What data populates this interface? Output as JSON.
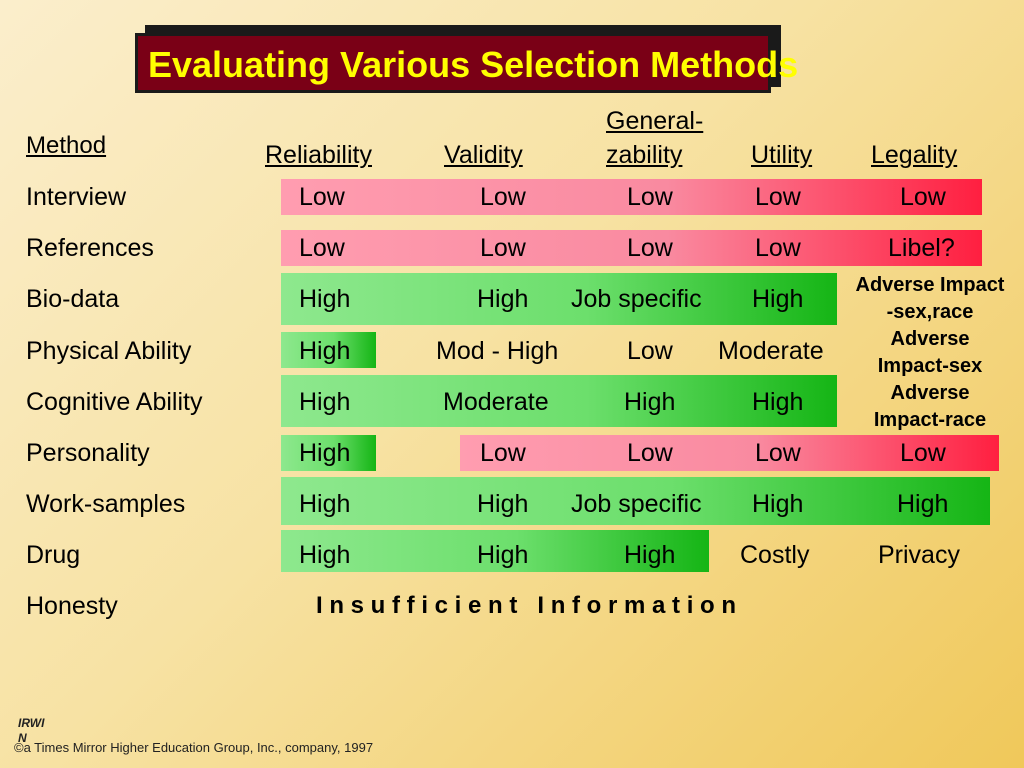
{
  "title": "Evaluating Various Selection Methods",
  "title_ghost_fragment": "hods",
  "headers": {
    "method": "Method",
    "reliability": "Reliability",
    "validity": "Validity",
    "generalizability_line1": "General-",
    "generalizability_line2": "zability",
    "utility": "Utility",
    "legality": "Legality"
  },
  "rows": [
    {
      "method": "Interview",
      "reliability": "Low",
      "validity": "Low",
      "generalizability": "Low",
      "utility": "Low",
      "legality": "Low"
    },
    {
      "method": "References",
      "reliability": "Low",
      "validity": "Low",
      "generalizability": "Low",
      "utility": "Low",
      "legality": "Libel?"
    },
    {
      "method": "Bio-data",
      "reliability": "High",
      "validity": "High",
      "generalizability": "Job specific",
      "utility": "High",
      "legality": ""
    },
    {
      "method": "Physical Ability",
      "reliability": "High",
      "validity": "Mod - High",
      "generalizability": "Low",
      "utility": "Moderate",
      "legality": ""
    },
    {
      "method": "Cognitive Ability",
      "reliability": "High",
      "validity": "Moderate",
      "generalizability": "High",
      "utility": "High",
      "legality": ""
    },
    {
      "method": "Personality",
      "reliability": "High",
      "validity": "Low",
      "generalizability": "Low",
      "utility": "Low",
      "legality": "Low"
    },
    {
      "method": "Work-samples",
      "reliability": "High",
      "validity": "High",
      "generalizability": "Job specific",
      "utility": "High",
      "legality": "High"
    },
    {
      "method": "Drug",
      "reliability": "High",
      "validity": "High",
      "generalizability": "High",
      "utility": "Costly",
      "legality": "Privacy"
    },
    {
      "method": "Honesty",
      "reliability": "",
      "validity": "",
      "generalizability": "",
      "utility": "",
      "legality": ""
    }
  ],
  "honesty_note": "I n s u f f i c i e n t   I n f o r m a t i o n",
  "legality_notes": {
    "biodata_line1": "Adverse Impact",
    "biodata_line2": "-sex,race",
    "physical_line1": "Adverse",
    "physical_line2": "Impact-sex",
    "cognitive_line1": "Adverse",
    "cognitive_line2": "Impact-race"
  },
  "footer": {
    "logo_line1": "IRWI",
    "logo_line2": "N",
    "copyright": "©a Times Mirror Higher Education Group, Inc., company, 1997"
  },
  "colors": {
    "title_bg": "#7a0016",
    "title_text": "#ffff00",
    "low_band": "#f98aa0",
    "high_band": "#6cdf6c"
  }
}
